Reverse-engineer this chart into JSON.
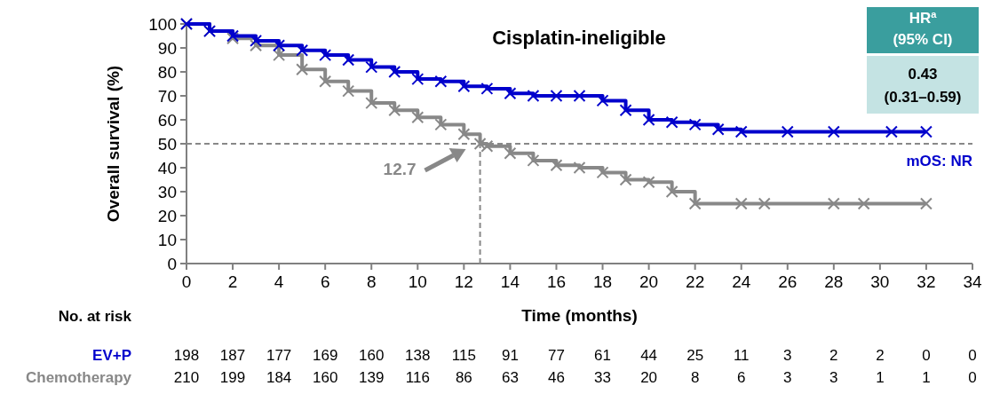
{
  "chart_data": {
    "type": "step",
    "title": "Cisplatin-ineligible",
    "xlabel": "Time (months)",
    "ylabel": "Overall survival (%)",
    "xlim": [
      0,
      34
    ],
    "xticks": [
      0,
      2,
      4,
      6,
      8,
      10,
      12,
      14,
      16,
      18,
      20,
      22,
      24,
      26,
      28,
      30,
      32,
      34
    ],
    "ylim": [
      0,
      100
    ],
    "yticks": [
      0,
      10,
      20,
      30,
      40,
      50,
      60,
      70,
      80,
      90,
      100
    ],
    "grid": false,
    "legend": false,
    "marker": "cross",
    "line_style": "solid",
    "series": [
      {
        "name": "EV+P",
        "color": "#0000cc",
        "x": [
          0,
          1,
          2,
          3,
          4,
          5,
          6,
          7,
          8,
          9,
          10,
          11,
          12,
          13,
          14,
          15,
          16,
          17,
          18,
          19,
          20,
          21,
          22,
          23,
          24,
          26,
          28,
          30.5,
          32
        ],
        "values": [
          100,
          97,
          95,
          93,
          91,
          89,
          87,
          85,
          82,
          80,
          77,
          76,
          74,
          73,
          71,
          70,
          70,
          70,
          68,
          64,
          60,
          59,
          58,
          56,
          55,
          55,
          55,
          55,
          55
        ]
      },
      {
        "name": "Chemotherapy",
        "color": "#888888",
        "x": [
          0,
          1,
          2,
          3,
          4,
          5,
          6,
          7,
          8,
          9,
          10,
          11,
          12,
          12.7,
          13,
          14,
          15,
          16,
          17,
          18,
          19,
          20,
          21,
          22,
          24,
          25,
          28,
          29.3,
          32
        ],
        "values": [
          100,
          97,
          94,
          91,
          87,
          81,
          76,
          72,
          67,
          64,
          61,
          58,
          54,
          50,
          49,
          46,
          43,
          41,
          40,
          38,
          35,
          34,
          30,
          25,
          25,
          25,
          25,
          25,
          25
        ]
      }
    ],
    "ref_lines": [
      {
        "axis": "y",
        "value": 50,
        "color": "#888888",
        "line_style": "dashed"
      },
      {
        "axis": "x",
        "value": 12.7,
        "label": "12.7",
        "color": "#888888",
        "line_style": "dashed"
      }
    ],
    "annotations": [
      "mOS: NR",
      "HR$^{a}$",
      "(95% CI)",
      "0.43",
      "(0.31–0.59)",
      "No. at risk",
      "198 187 177 169 160 138 115 91 77 61 44 25 11 3 2 2 0 0",
      "210 199 184 160 139 116 86 63 46 33 20 8 6 3 3 1 1 0"
    ]
  }
}
